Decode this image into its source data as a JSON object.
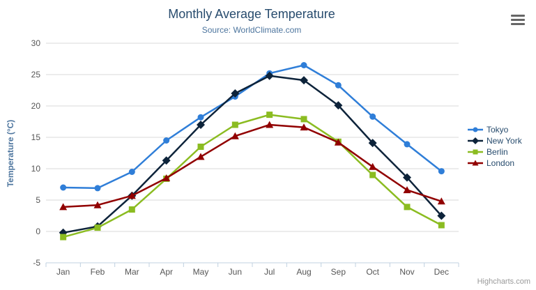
{
  "chart": {
    "title": "Monthly Average Temperature",
    "subtitle": "Source: WorldClimate.com"
  },
  "credits": {
    "label": "Highcharts.com"
  },
  "export_menu": {
    "icon": "hamburger-icon"
  },
  "colors": {
    "title_text": "#274b6d",
    "subtitle_text": "#4d759e",
    "axis_title_text": "#4d759e",
    "axis_label_text": "#555555",
    "gridline": "#d8d8d8",
    "x_axis_line": "#c0d0e0",
    "legend_text": "#274b6d",
    "credits_text": "#999999",
    "export_icon": "#666666"
  },
  "chart_data": {
    "type": "line",
    "title": "Monthly Average Temperature",
    "subtitle": "Source: WorldClimate.com",
    "xlabel": "",
    "ylabel": "Temperature (°C)",
    "ylim": [
      -5,
      30
    ],
    "ytick_step": 5,
    "y_tick_labels": [
      "-5",
      "0",
      "5",
      "10",
      "15",
      "20",
      "25",
      "30"
    ],
    "grid": true,
    "legend_position": "right-middle-vertical",
    "categories": [
      "Jan",
      "Feb",
      "Mar",
      "Apr",
      "May",
      "Jun",
      "Jul",
      "Aug",
      "Sep",
      "Oct",
      "Nov",
      "Dec"
    ],
    "series": [
      {
        "name": "Tokyo",
        "color": "#2f7ed8",
        "marker": "circle",
        "values": [
          7.0,
          6.9,
          9.5,
          14.5,
          18.2,
          21.5,
          25.2,
          26.5,
          23.3,
          18.3,
          13.9,
          9.6
        ]
      },
      {
        "name": "New York",
        "color": "#0d233a",
        "marker": "diamond",
        "values": [
          -0.2,
          0.8,
          5.7,
          11.3,
          17.0,
          22.0,
          24.8,
          24.1,
          20.1,
          14.1,
          8.6,
          2.5
        ]
      },
      {
        "name": "Berlin",
        "color": "#8bbc21",
        "marker": "square",
        "values": [
          -0.9,
          0.6,
          3.5,
          8.4,
          13.5,
          17.0,
          18.6,
          17.9,
          14.3,
          9.0,
          3.9,
          1.0
        ]
      },
      {
        "name": "London",
        "color": "#910000",
        "marker": "triangle",
        "values": [
          3.9,
          4.2,
          5.7,
          8.5,
          11.9,
          15.2,
          17.0,
          16.6,
          14.2,
          10.3,
          6.6,
          4.8
        ]
      }
    ]
  }
}
